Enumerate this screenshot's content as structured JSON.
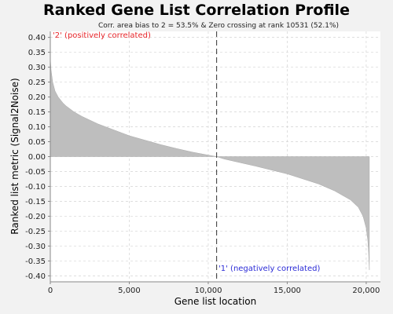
{
  "chart_data": {
    "type": "area",
    "title": "Ranked Gene List Correlation Profile",
    "subtitle": "Corr. area bias to 2 = 53.5% & Zero crossing at rank 10531 (52.1%)",
    "xlabel": "Gene list location",
    "ylabel": "Ranked list metric (Signal2Noise)",
    "xlim": [
      0,
      20900
    ],
    "ylim": [
      -0.42,
      0.42
    ],
    "x_ticks": [
      0,
      5000,
      10000,
      15000,
      20000
    ],
    "x_tick_labels": [
      "0",
      "5,000",
      "10,000",
      "15,000",
      "20,000"
    ],
    "y_ticks": [
      0.4,
      0.35,
      0.3,
      0.25,
      0.2,
      0.15,
      0.1,
      0.05,
      0.0,
      -0.05,
      -0.1,
      -0.15,
      -0.2,
      -0.25,
      -0.3,
      -0.35,
      -0.4
    ],
    "y_tick_labels": [
      "0.40",
      "0.35",
      "0.30",
      "0.25",
      "0.20",
      "0.15",
      "0.10",
      "0.05",
      "0.00",
      "-0.05",
      "-0.10",
      "-0.15",
      "-0.20",
      "-0.25",
      "-0.30",
      "-0.35",
      "-0.40"
    ],
    "grid": true,
    "zero_crossing_rank": 10531,
    "annotations": {
      "positive": "'2' (positively correlated)",
      "negative": "'1' (negatively correlated)"
    },
    "series": [
      {
        "x": [
          0,
          50,
          150,
          300,
          500,
          800,
          1000,
          1500,
          2000,
          3000,
          4000,
          5000,
          6000,
          7000,
          8000,
          9000,
          10000,
          10531,
          11000,
          12000,
          13000,
          14000,
          15000,
          16000,
          17000,
          18000,
          19000,
          19500,
          19800,
          20000,
          20100,
          20150,
          20200
        ],
        "y": [
          0.33,
          0.29,
          0.25,
          0.22,
          0.2,
          0.18,
          0.17,
          0.15,
          0.135,
          0.11,
          0.09,
          0.07,
          0.055,
          0.04,
          0.027,
          0.015,
          0.005,
          0.0,
          -0.008,
          -0.02,
          -0.032,
          -0.045,
          -0.058,
          -0.075,
          -0.092,
          -0.115,
          -0.145,
          -0.17,
          -0.2,
          -0.24,
          -0.28,
          -0.32,
          -0.38
        ]
      }
    ],
    "colors": {
      "fill": "#bebebe",
      "zero_line": "#333333",
      "positive_label": "#e8262b",
      "negative_label": "#2b2bd6",
      "plot_bg": "#ffffff",
      "page_bg": "#f2f2f2"
    }
  }
}
